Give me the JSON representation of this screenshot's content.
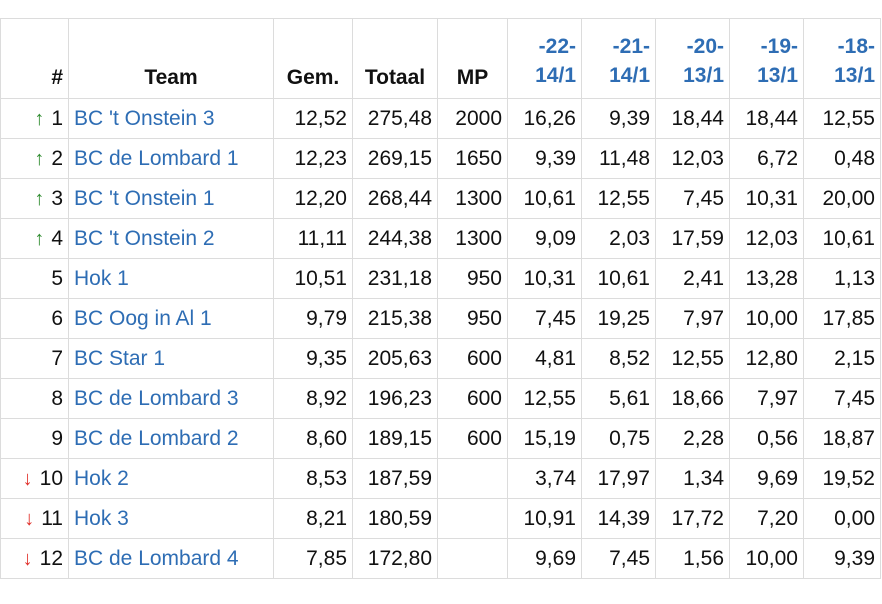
{
  "headers": {
    "rank": "#",
    "team": "Team",
    "avg": "Gem.",
    "total": "Totaal",
    "mp": "MP"
  },
  "rounds": [
    {
      "num": "-22-",
      "date": "14/1"
    },
    {
      "num": "-21-",
      "date": "14/1"
    },
    {
      "num": "-20-",
      "date": "13/1"
    },
    {
      "num": "-19-",
      "date": "13/1"
    },
    {
      "num": "-18-",
      "date": "13/1"
    }
  ],
  "colors": {
    "link": "#2e6db4",
    "up_arrow": "#2e8b2e",
    "down_arrow": "#e0302a",
    "grid": "#dcdcdc"
  },
  "icons": {
    "up": "arrow-up-icon",
    "down": "arrow-down-icon"
  },
  "rows": [
    {
      "trend": "up",
      "rank": "1",
      "team": "BC 't Onstein 3",
      "avg": "12,52",
      "total": "275,48",
      "mp": "2000",
      "scores": [
        "16,26",
        "9,39",
        "18,44",
        "18,44",
        "12,55"
      ]
    },
    {
      "trend": "up",
      "rank": "2",
      "team": "BC de Lombard 1",
      "avg": "12,23",
      "total": "269,15",
      "mp": "1650",
      "scores": [
        "9,39",
        "11,48",
        "12,03",
        "6,72",
        "0,48"
      ]
    },
    {
      "trend": "up",
      "rank": "3",
      "team": "BC 't Onstein 1",
      "avg": "12,20",
      "total": "268,44",
      "mp": "1300",
      "scores": [
        "10,61",
        "12,55",
        "7,45",
        "10,31",
        "20,00"
      ]
    },
    {
      "trend": "up",
      "rank": "4",
      "team": "BC 't Onstein 2",
      "avg": "11,11",
      "total": "244,38",
      "mp": "1300",
      "scores": [
        "9,09",
        "2,03",
        "17,59",
        "12,03",
        "10,61"
      ]
    },
    {
      "trend": "",
      "rank": "5",
      "team": "Hok 1",
      "avg": "10,51",
      "total": "231,18",
      "mp": "950",
      "scores": [
        "10,31",
        "10,61",
        "2,41",
        "13,28",
        "1,13"
      ]
    },
    {
      "trend": "",
      "rank": "6",
      "team": "BC Oog in Al 1",
      "avg": "9,79",
      "total": "215,38",
      "mp": "950",
      "scores": [
        "7,45",
        "19,25",
        "7,97",
        "10,00",
        "17,85"
      ]
    },
    {
      "trend": "",
      "rank": "7",
      "team": "BC Star 1",
      "avg": "9,35",
      "total": "205,63",
      "mp": "600",
      "scores": [
        "4,81",
        "8,52",
        "12,55",
        "12,80",
        "2,15"
      ]
    },
    {
      "trend": "",
      "rank": "8",
      "team": "BC de Lombard 3",
      "avg": "8,92",
      "total": "196,23",
      "mp": "600",
      "scores": [
        "12,55",
        "5,61",
        "18,66",
        "7,97",
        "7,45"
      ]
    },
    {
      "trend": "",
      "rank": "9",
      "team": "BC de Lombard 2",
      "avg": "8,60",
      "total": "189,15",
      "mp": "600",
      "scores": [
        "15,19",
        "0,75",
        "2,28",
        "0,56",
        "18,87"
      ]
    },
    {
      "trend": "down",
      "rank": "10",
      "team": "Hok 2",
      "avg": "8,53",
      "total": "187,59",
      "mp": "",
      "scores": [
        "3,74",
        "17,97",
        "1,34",
        "9,69",
        "19,52"
      ]
    },
    {
      "trend": "down",
      "rank": "11",
      "team": "Hok 3",
      "avg": "8,21",
      "total": "180,59",
      "mp": "",
      "scores": [
        "10,91",
        "14,39",
        "17,72",
        "7,20",
        "0,00"
      ]
    },
    {
      "trend": "down",
      "rank": "12",
      "team": "BC de Lombard 4",
      "avg": "7,85",
      "total": "172,80",
      "mp": "",
      "scores": [
        "9,69",
        "7,45",
        "1,56",
        "10,00",
        "9,39"
      ]
    }
  ]
}
